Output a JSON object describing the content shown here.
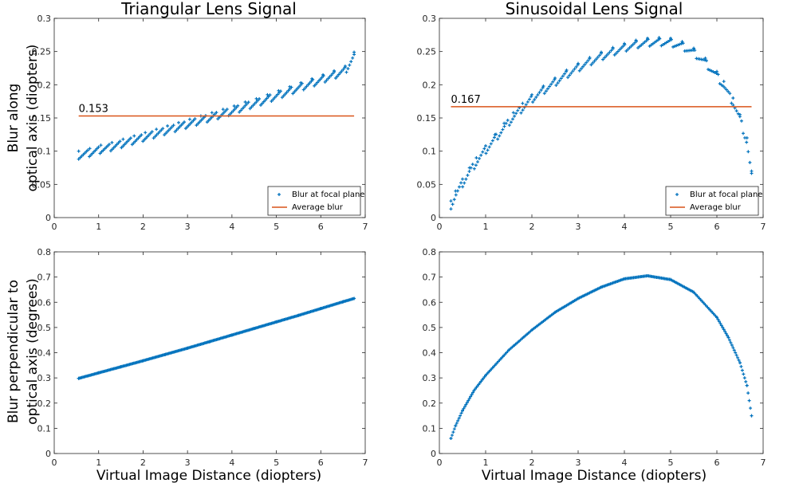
{
  "ylabels": {
    "top": [
      "Blur along",
      "optical axis (diopters)"
    ],
    "bottom": [
      "Blur perpendicular to",
      "optical axis (degrees)"
    ]
  },
  "xlabel": "Virtual Image Distance (diopters)",
  "colors": {
    "series": "#0072BD",
    "average": "#D95319",
    "axis": "#262626"
  },
  "chart_data": [
    {
      "type": "scatter",
      "title": "Triangular Lens Signal",
      "xlabel": "",
      "ylabel": "Blur along optical axis (diopters)",
      "xlim": [
        0,
        7
      ],
      "ylim": [
        0,
        0.3
      ],
      "xticks": [
        0,
        1,
        2,
        3,
        4,
        5,
        6,
        7
      ],
      "yticks": [
        0,
        0.05,
        0.1,
        0.15,
        0.2,
        0.25,
        0.3
      ],
      "ytick_labels": [
        "0",
        "0.05",
        "0.1",
        "0.15",
        "0.2",
        "0.25",
        "0.3"
      ],
      "legend": {
        "position": "bottom-right",
        "entries": [
          "Blur at focal plane",
          "Average blur"
        ]
      },
      "series": [
        {
          "name": "Blur at focal plane",
          "kind": "markers",
          "x": [
            0.55,
            0.8,
            1.05,
            1.3,
            1.55,
            1.8,
            2.05,
            2.3,
            2.55,
            2.8,
            3.05,
            3.3,
            3.55,
            3.8,
            4.05,
            4.3,
            4.55,
            4.8,
            5.05,
            5.3,
            5.55,
            5.8,
            6.05,
            6.3,
            6.55,
            6.75
          ],
          "y": [
            0.1,
            0.104,
            0.109,
            0.113,
            0.118,
            0.123,
            0.128,
            0.133,
            0.138,
            0.143,
            0.148,
            0.153,
            0.158,
            0.163,
            0.168,
            0.174,
            0.179,
            0.185,
            0.191,
            0.197,
            0.203,
            0.209,
            0.215,
            0.221,
            0.228,
            0.249
          ]
        },
        {
          "name": "Average blur",
          "kind": "hline",
          "x": [
            0.55,
            6.75
          ],
          "y": [
            0.153,
            0.153
          ]
        }
      ],
      "annotations": [
        {
          "text": "0.153",
          "x": 0.55,
          "y": 0.153
        }
      ]
    },
    {
      "type": "scatter",
      "title": "Sinusoidal Lens Signal",
      "xlabel": "",
      "ylabel": "",
      "xlim": [
        0,
        7
      ],
      "ylim": [
        0,
        0.3
      ],
      "xticks": [
        0,
        1,
        2,
        3,
        4,
        5,
        6,
        7
      ],
      "yticks": [
        0,
        0.05,
        0.1,
        0.15,
        0.2,
        0.25,
        0.3
      ],
      "ytick_labels": [
        "0",
        "0.05",
        "0.1",
        "0.15",
        "0.2",
        "0.25",
        "0.3"
      ],
      "legend": {
        "position": "bottom-right",
        "entries": [
          "Blur at focal plane",
          "Average blur"
        ]
      },
      "series": [
        {
          "name": "Blur at focal plane",
          "kind": "markers",
          "x": [
            0.25,
            0.35,
            0.5,
            0.65,
            0.8,
            1.0,
            1.2,
            1.4,
            1.6,
            1.8,
            2.0,
            2.25,
            2.5,
            2.75,
            3.0,
            3.25,
            3.5,
            3.75,
            4.0,
            4.25,
            4.5,
            4.75,
            5.0,
            5.25,
            5.5,
            5.75,
            6.0,
            6.15,
            6.35,
            6.5,
            6.65,
            6.75
          ],
          "y": [
            0.025,
            0.04,
            0.058,
            0.075,
            0.09,
            0.108,
            0.125,
            0.142,
            0.158,
            0.172,
            0.185,
            0.198,
            0.21,
            0.222,
            0.232,
            0.241,
            0.249,
            0.256,
            0.262,
            0.267,
            0.27,
            0.271,
            0.27,
            0.265,
            0.255,
            0.24,
            0.22,
            0.205,
            0.18,
            0.155,
            0.12,
            0.07
          ]
        },
        {
          "name": "Average blur",
          "kind": "hline",
          "x": [
            0.25,
            6.75
          ],
          "y": [
            0.167,
            0.167
          ]
        }
      ],
      "annotations": [
        {
          "text": "0.167",
          "x": 0.25,
          "y": 0.167
        }
      ]
    },
    {
      "type": "scatter",
      "title": "",
      "xlabel": "Virtual Image Distance (diopters)",
      "ylabel": "Blur perpendicular to optical axis (degrees)",
      "xlim": [
        0,
        7
      ],
      "ylim": [
        0,
        0.8
      ],
      "xticks": [
        0,
        1,
        2,
        3,
        4,
        5,
        6,
        7
      ],
      "yticks": [
        0,
        0.1,
        0.2,
        0.3,
        0.4,
        0.5,
        0.6,
        0.7,
        0.8
      ],
      "ytick_labels": [
        "0",
        "0.1",
        "0.2",
        "0.3",
        "0.4",
        "0.5",
        "0.6",
        "0.7",
        "0.8"
      ],
      "series": [
        {
          "kind": "dense",
          "x": [
            0.55,
            1.0,
            1.5,
            2.0,
            2.5,
            3.0,
            3.5,
            4.0,
            4.5,
            5.0,
            5.5,
            6.0,
            6.5,
            6.75
          ],
          "y": [
            0.298,
            0.32,
            0.344,
            0.368,
            0.393,
            0.418,
            0.444,
            0.47,
            0.496,
            0.522,
            0.548,
            0.575,
            0.602,
            0.615
          ]
        }
      ],
      "annotations": []
    },
    {
      "type": "scatter",
      "title": "",
      "xlabel": "Virtual Image Distance (diopters)",
      "ylabel": "",
      "xlim": [
        0,
        7
      ],
      "ylim": [
        0,
        0.8
      ],
      "xticks": [
        0,
        1,
        2,
        3,
        4,
        5,
        6,
        7
      ],
      "yticks": [
        0,
        0.1,
        0.2,
        0.3,
        0.4,
        0.5,
        0.6,
        0.7,
        0.8
      ],
      "ytick_labels": [
        "0",
        "0.1",
        "0.2",
        "0.3",
        "0.4",
        "0.5",
        "0.6",
        "0.7",
        "0.8"
      ],
      "series": [
        {
          "kind": "dense",
          "x": [
            0.25,
            0.35,
            0.5,
            0.75,
            1.0,
            1.5,
            2.0,
            2.5,
            3.0,
            3.5,
            4.0,
            4.5,
            5.0,
            5.5,
            6.0,
            6.25,
            6.5,
            6.65,
            6.75
          ],
          "y": [
            0.06,
            0.11,
            0.17,
            0.25,
            0.31,
            0.41,
            0.49,
            0.56,
            0.615,
            0.66,
            0.693,
            0.705,
            0.69,
            0.64,
            0.54,
            0.46,
            0.36,
            0.27,
            0.15
          ]
        }
      ],
      "annotations": []
    }
  ]
}
